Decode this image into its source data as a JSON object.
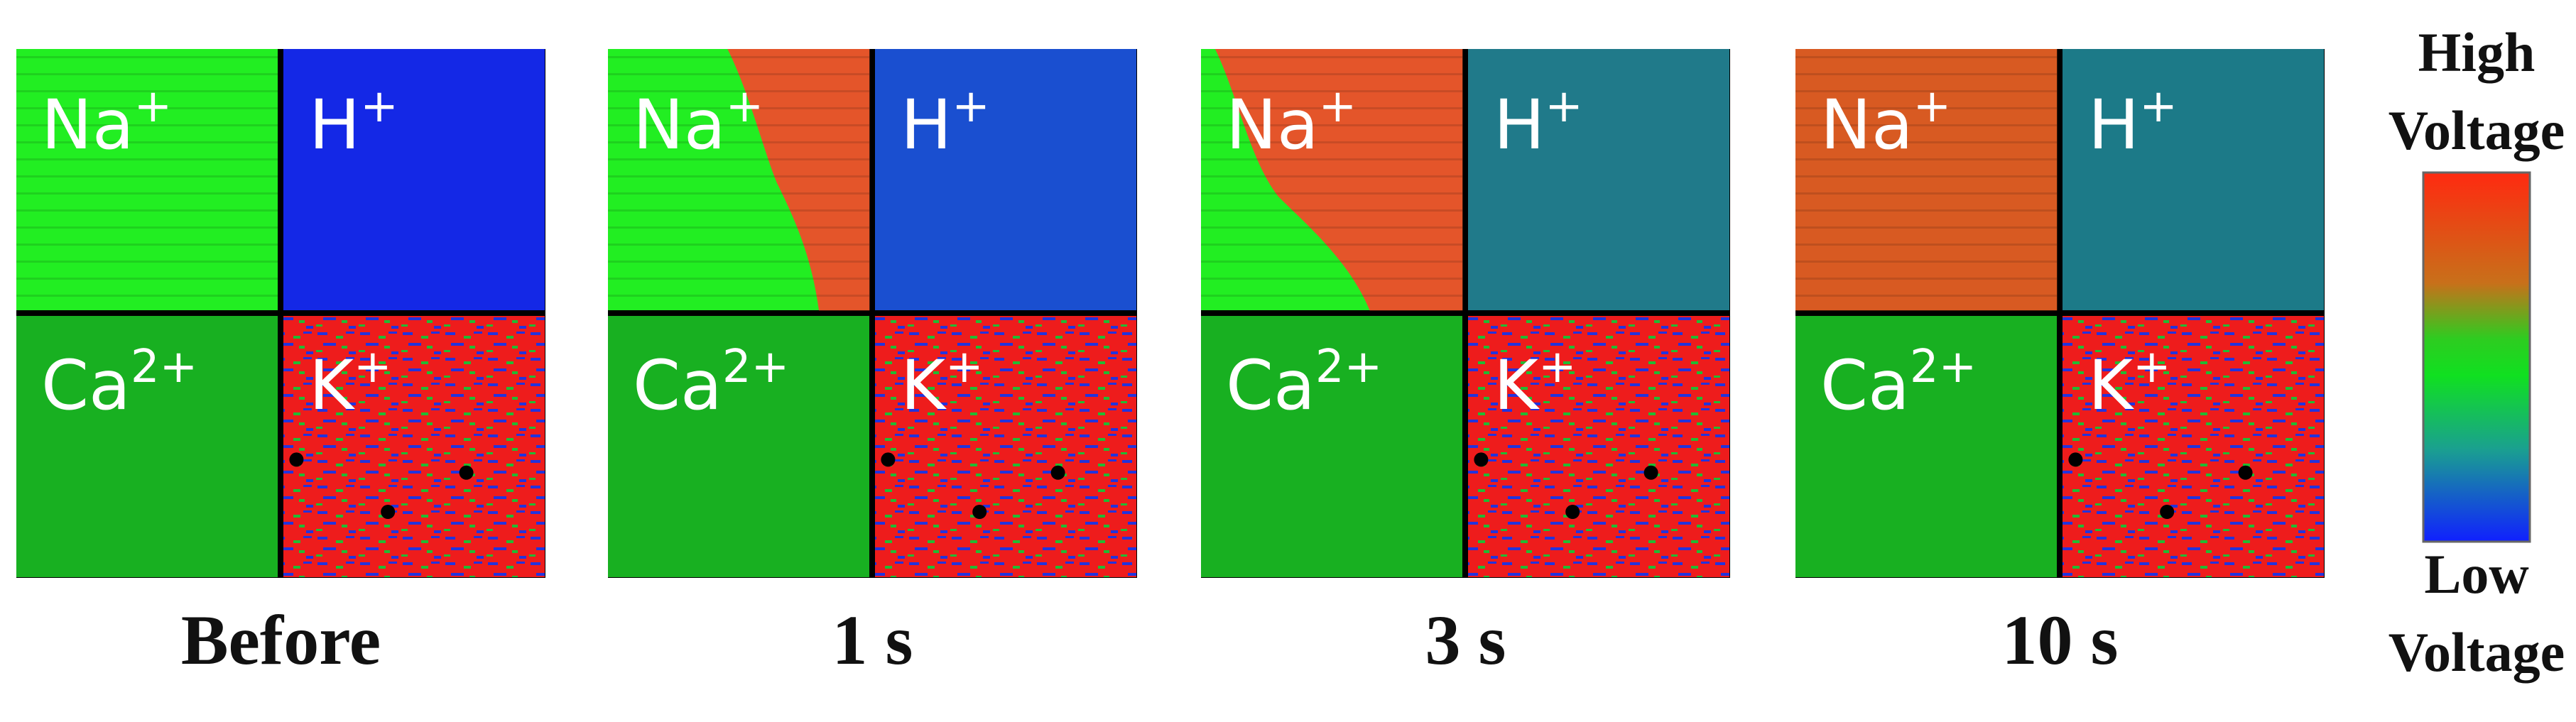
{
  "panels": [
    {
      "caption": "Before",
      "quadrants": [
        {
          "ion": "Na",
          "charge": "+"
        },
        {
          "ion": "H",
          "charge": "+"
        },
        {
          "ion": "Ca",
          "charge": "2+"
        },
        {
          "ion": "K",
          "charge": "+"
        }
      ]
    },
    {
      "caption": "1 s",
      "quadrants": [
        {
          "ion": "Na",
          "charge": "+"
        },
        {
          "ion": "H",
          "charge": "+"
        },
        {
          "ion": "Ca",
          "charge": "2+"
        },
        {
          "ion": "K",
          "charge": "+"
        }
      ]
    },
    {
      "caption": "3 s",
      "quadrants": [
        {
          "ion": "Na",
          "charge": "+"
        },
        {
          "ion": "H",
          "charge": "+"
        },
        {
          "ion": "Ca",
          "charge": "2+"
        },
        {
          "ion": "K",
          "charge": "+"
        }
      ]
    },
    {
      "caption": "10 s",
      "quadrants": [
        {
          "ion": "Na",
          "charge": "+"
        },
        {
          "ion": "H",
          "charge": "+"
        },
        {
          "ion": "Ca",
          "charge": "2+"
        },
        {
          "ion": "K",
          "charge": "+"
        }
      ]
    }
  ],
  "colorbar": {
    "top": [
      "High",
      "Voltage"
    ],
    "bottom": [
      "Low",
      "Voltage"
    ]
  }
}
